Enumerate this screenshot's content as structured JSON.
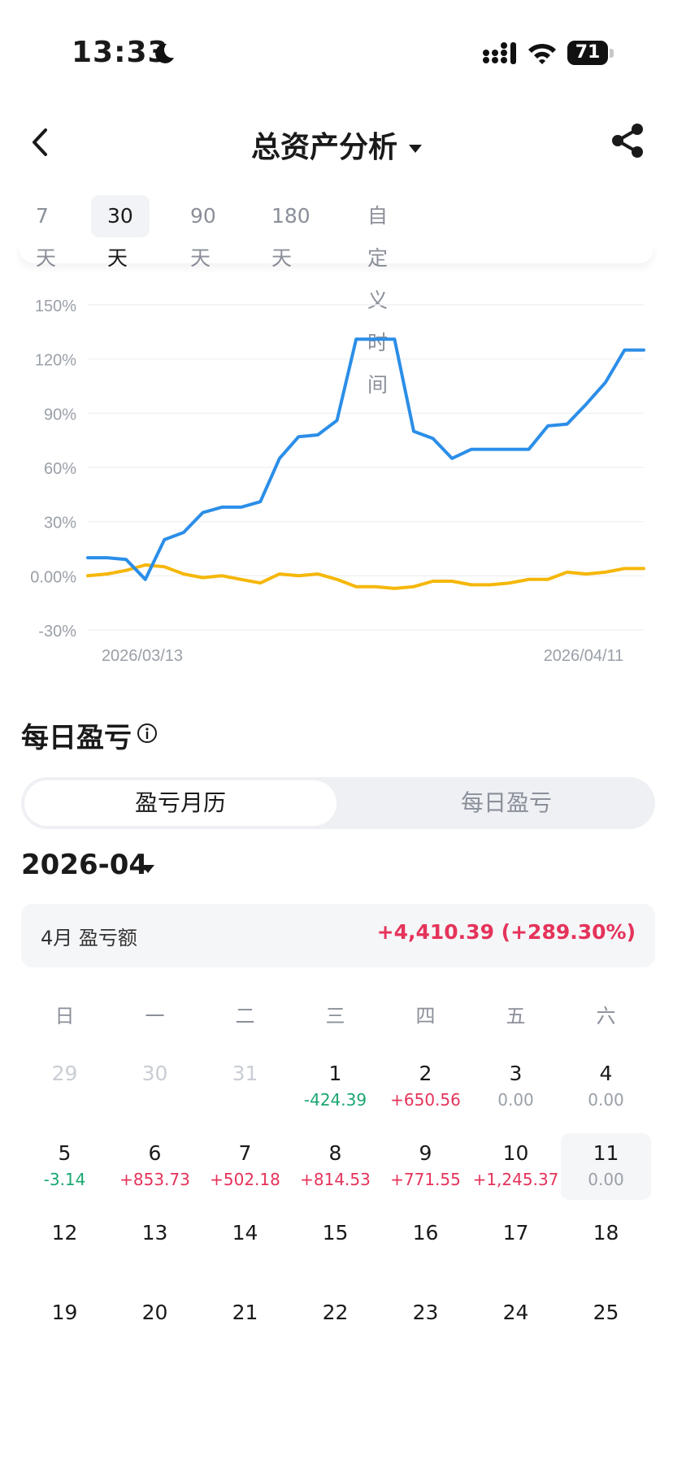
{
  "status_bar": {
    "time": "13:33",
    "battery": "71"
  },
  "header": {
    "title": "总资产分析"
  },
  "range_tabs": [
    {
      "label": "7天",
      "active": false
    },
    {
      "label": "30天",
      "active": true
    },
    {
      "label": "90天",
      "active": false
    },
    {
      "label": "180天",
      "active": false
    },
    {
      "label": "自定义时间",
      "active": false
    }
  ],
  "chart_data": {
    "type": "line",
    "y_ticks": [
      "150%",
      "120%",
      "90%",
      "60%",
      "30%",
      "0.00%",
      "-30%"
    ],
    "ylim": [
      -30,
      150
    ],
    "x_labels": [
      "2026/03/13",
      "2026/04/11"
    ],
    "grid": true,
    "colors": [
      "#2b8ee8",
      "#f5b70a"
    ],
    "series": [
      {
        "values": [
          10,
          10,
          9,
          -2,
          20,
          24,
          35,
          38,
          38,
          41,
          65,
          77,
          78,
          86,
          131,
          131,
          131,
          80,
          76,
          65,
          70,
          70,
          70,
          70,
          83,
          84,
          95,
          107,
          125,
          125
        ]
      },
      {
        "values": [
          0,
          1,
          3,
          6,
          5,
          1,
          -1,
          0,
          -2,
          -4,
          1,
          0,
          1,
          -2,
          -6,
          -6,
          -7,
          -6,
          -3,
          -3,
          -5,
          -5,
          -4,
          -2,
          -2,
          2,
          1,
          2,
          4,
          4
        ]
      }
    ]
  },
  "daily_pnl": {
    "title": "每日盈亏",
    "tabs": [
      "盈亏月历",
      "每日盈亏"
    ],
    "month": "2026-04",
    "summary_label": "4月 盈亏额",
    "summary_value": "+4,410.39 (+289.30%)",
    "weekdays": [
      "日",
      "一",
      "二",
      "三",
      "四",
      "五",
      "六"
    ],
    "weeks": [
      [
        {
          "day": "29",
          "value": "",
          "muted": true
        },
        {
          "day": "30",
          "value": "",
          "muted": true
        },
        {
          "day": "31",
          "value": "",
          "muted": true
        },
        {
          "day": "1",
          "value": "-424.39",
          "tone": "neg"
        },
        {
          "day": "2",
          "value": "+650.56",
          "tone": "pos"
        },
        {
          "day": "3",
          "value": "0.00",
          "tone": "zero"
        },
        {
          "day": "4",
          "value": "0.00",
          "tone": "zero"
        }
      ],
      [
        {
          "day": "5",
          "value": "-3.14",
          "tone": "neg"
        },
        {
          "day": "6",
          "value": "+853.73",
          "tone": "pos"
        },
        {
          "day": "7",
          "value": "+502.18",
          "tone": "pos"
        },
        {
          "day": "8",
          "value": "+814.53",
          "tone": "pos"
        },
        {
          "day": "9",
          "value": "+771.55",
          "tone": "pos"
        },
        {
          "day": "10",
          "value": "+1,245.37",
          "tone": "pos"
        },
        {
          "day": "11",
          "value": "0.00",
          "tone": "zero",
          "today": true
        }
      ],
      [
        {
          "day": "12",
          "value": ""
        },
        {
          "day": "13",
          "value": ""
        },
        {
          "day": "14",
          "value": ""
        },
        {
          "day": "15",
          "value": ""
        },
        {
          "day": "16",
          "value": ""
        },
        {
          "day": "17",
          "value": ""
        },
        {
          "day": "18",
          "value": ""
        }
      ],
      [
        {
          "day": "19",
          "value": ""
        },
        {
          "day": "20",
          "value": ""
        },
        {
          "day": "21",
          "value": ""
        },
        {
          "day": "22",
          "value": ""
        },
        {
          "day": "23",
          "value": ""
        },
        {
          "day": "24",
          "value": ""
        },
        {
          "day": "25",
          "value": ""
        }
      ]
    ]
  }
}
